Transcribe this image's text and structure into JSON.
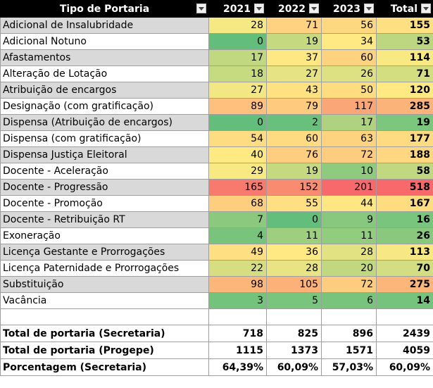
{
  "header": {
    "col0": "Tipo de Portaria",
    "col1": "2021",
    "col2": "2022",
    "col3": "2023",
    "col4": "Total"
  },
  "colors": {
    "green": "#63be7b",
    "yellow": "#ffeb84",
    "red": "#f8696b"
  },
  "rows": [
    {
      "label": "Adicional de Insalubridade",
      "v2021": "28",
      "v2022": "71",
      "v2023": "56",
      "total": "155",
      "c2021": "#f6e883",
      "c2022": "#fed280",
      "c2023": "#fed781",
      "ctotal": "#fee082",
      "shade": "grey"
    },
    {
      "label": "Adicional Notuno",
      "v2021": "0",
      "v2022": "19",
      "v2023": "34",
      "total": "53",
      "c2021": "#63be7b",
      "c2022": "#c4d980",
      "c2023": "#fee983",
      "ctotal": "#bcd780",
      "shade": "white"
    },
    {
      "label": "Afastamentos",
      "v2021": "17",
      "v2022": "37",
      "v2023": "60",
      "total": "114",
      "c2021": "#c0d880",
      "c2022": "#fee883",
      "c2023": "#fed380",
      "ctotal": "#f9e983",
      "shade": "grey"
    },
    {
      "label": "Alteração de Lotação",
      "v2021": "18",
      "v2022": "27",
      "v2023": "26",
      "total": "71",
      "c2021": "#c6da80",
      "c2022": "#e5e383",
      "c2023": "#dde182",
      "ctotal": "#d3de81",
      "shade": "white"
    },
    {
      "label": "Atribuição de encargos",
      "v2021": "27",
      "v2022": "43",
      "v2023": "50",
      "total": "120",
      "c2021": "#f2e783",
      "c2022": "#fee282",
      "c2023": "#fedd81",
      "ctotal": "#fee983",
      "shade": "grey"
    },
    {
      "label": "Designação (com gratificação)",
      "v2021": "89",
      "v2022": "79",
      "v2023": "117",
      "total": "285",
      "c2021": "#fec07c",
      "c2022": "#fecb7e",
      "c2023": "#fba676",
      "ctotal": "#fcb379",
      "shade": "white"
    },
    {
      "label": "Dispensa (Atribuição de encargos)",
      "v2021": "0",
      "v2022": "2",
      "v2023": "17",
      "total": "19",
      "c2021": "#63be7b",
      "c2022": "#69c07c",
      "c2023": "#aed27f",
      "ctotal": "#7dc67d",
      "shade": "grey"
    },
    {
      "label": "Dispensa  (com gratificação)",
      "v2021": "54",
      "v2022": "60",
      "v2023": "63",
      "total": "177",
      "c2021": "#fedc81",
      "c2022": "#feda81",
      "c2023": "#fed380",
      "ctotal": "#feda81",
      "shade": "white"
    },
    {
      "label": "Dispensa Justiça Eleitoral",
      "v2021": "40",
      "v2022": "76",
      "v2023": "72",
      "total": "188",
      "c2021": "#fee983",
      "c2022": "#fecd7f",
      "c2023": "#fecc7e",
      "ctotal": "#fed780",
      "shade": "grey"
    },
    {
      "label": "Docente - Aceleração",
      "v2021": "29",
      "v2022": "19",
      "v2023": "10",
      "total": "58",
      "c2021": "#f9e983",
      "c2022": "#c4d980",
      "c2023": "#8fcb7e",
      "ctotal": "#c2d880",
      "shade": "white"
    },
    {
      "label": "Docente - Progressão",
      "v2021": "165",
      "v2022": "152",
      "v2023": "201",
      "total": "518",
      "c2021": "#f8796e",
      "c2022": "#f98b71",
      "c2023": "#f8696b",
      "ctotal": "#f8696b",
      "shade": "grey"
    },
    {
      "label": "Docente - Promoção",
      "v2021": "68",
      "v2022": "55",
      "v2023": "44",
      "total": "167",
      "c2021": "#fece7f",
      "c2022": "#fedf82",
      "c2023": "#fee683",
      "ctotal": "#fedd81",
      "shade": "white"
    },
    {
      "label": "Docente - Retribuição RT",
      "v2021": "7",
      "v2022": "0",
      "v2023": "9",
      "total": "16",
      "c2021": "#8ac97e",
      "c2022": "#63be7b",
      "c2023": "#88c87e",
      "ctotal": "#79c57d",
      "shade": "grey"
    },
    {
      "label": "Exoneração",
      "v2021": "4",
      "v2022": "11",
      "v2023": "11",
      "total": "26",
      "c2021": "#78c47d",
      "c2022": "#9ecf7f",
      "c2023": "#92cc7e",
      "ctotal": "#89c97e",
      "shade": "white"
    },
    {
      "label": "Licença Gestante e Prorrogações",
      "v2021": "49",
      "v2022": "36",
      "v2023": "28",
      "total": "113",
      "c2021": "#fee082",
      "c2022": "#fee983",
      "c2023": "#e2e282",
      "ctotal": "#f8e883",
      "shade": "grey"
    },
    {
      "label": "Licença Paternidade e Prorrogações",
      "v2021": "22",
      "v2022": "28",
      "v2023": "20",
      "total": "70",
      "c2021": "#d7de81",
      "c2022": "#e8e483",
      "c2023": "#c1d880",
      "ctotal": "#d2de81",
      "shade": "white"
    },
    {
      "label": "Substituição",
      "v2021": "98",
      "v2022": "105",
      "v2023": "72",
      "total": "275",
      "c2021": "#fdb67a",
      "c2022": "#fcb179",
      "c2023": "#fecc7e",
      "ctotal": "#fcb67a",
      "shade": "grey"
    },
    {
      "label": "Vacância",
      "v2021": "3",
      "v2022": "5",
      "v2023": "6",
      "total": "14",
      "c2021": "#73c37c",
      "c2022": "#7ac57d",
      "c2023": "#79c47d",
      "ctotal": "#75c37c",
      "shade": "white"
    }
  ],
  "summary": [
    {
      "label": "Total de portaria (Secretaria)",
      "v2021": "718",
      "v2022": "825",
      "v2023": "896",
      "total": "2439"
    },
    {
      "label": "Total de portaria (Progepe)",
      "v2021": "1115",
      "v2022": "1373",
      "v2023": "1571",
      "total": "4059"
    },
    {
      "label": "Porcentagem (Secretaria)",
      "v2021": "64,39%",
      "v2022": "60,09%",
      "v2023": "57,03%",
      "total": "60,09%"
    }
  ],
  "icons": {
    "filter": "dropdown-arrow-icon"
  }
}
